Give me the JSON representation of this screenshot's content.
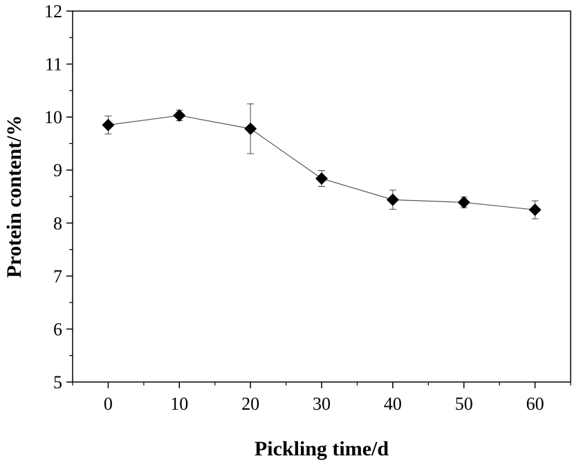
{
  "chart_data": {
    "type": "line",
    "title": "",
    "xlabel": "Pickling time/d",
    "ylabel": "Protein content/%",
    "x": [
      0,
      10,
      20,
      30,
      40,
      50,
      60
    ],
    "x_ticks": [
      0,
      10,
      20,
      30,
      40,
      50,
      60
    ],
    "y_ticks": [
      5,
      6,
      7,
      8,
      9,
      10,
      11,
      12
    ],
    "x_tick_labels": [
      "0",
      "10",
      "20",
      "30",
      "40",
      "50",
      "60"
    ],
    "y_tick_labels": [
      "5",
      "6",
      "7",
      "8",
      "9",
      "10",
      "11",
      "12"
    ],
    "xlim": [
      -5,
      65
    ],
    "ylim": [
      5,
      12
    ],
    "grid": false,
    "legend": "none",
    "series": [
      {
        "marker": "diamond",
        "color": "#000000",
        "line_color": "#555555",
        "values": [
          9.85,
          10.03,
          9.78,
          8.84,
          8.44,
          8.39,
          8.25
        ],
        "errors": [
          0.17,
          0.1,
          0.47,
          0.15,
          0.18,
          0.1,
          0.17
        ]
      }
    ]
  }
}
